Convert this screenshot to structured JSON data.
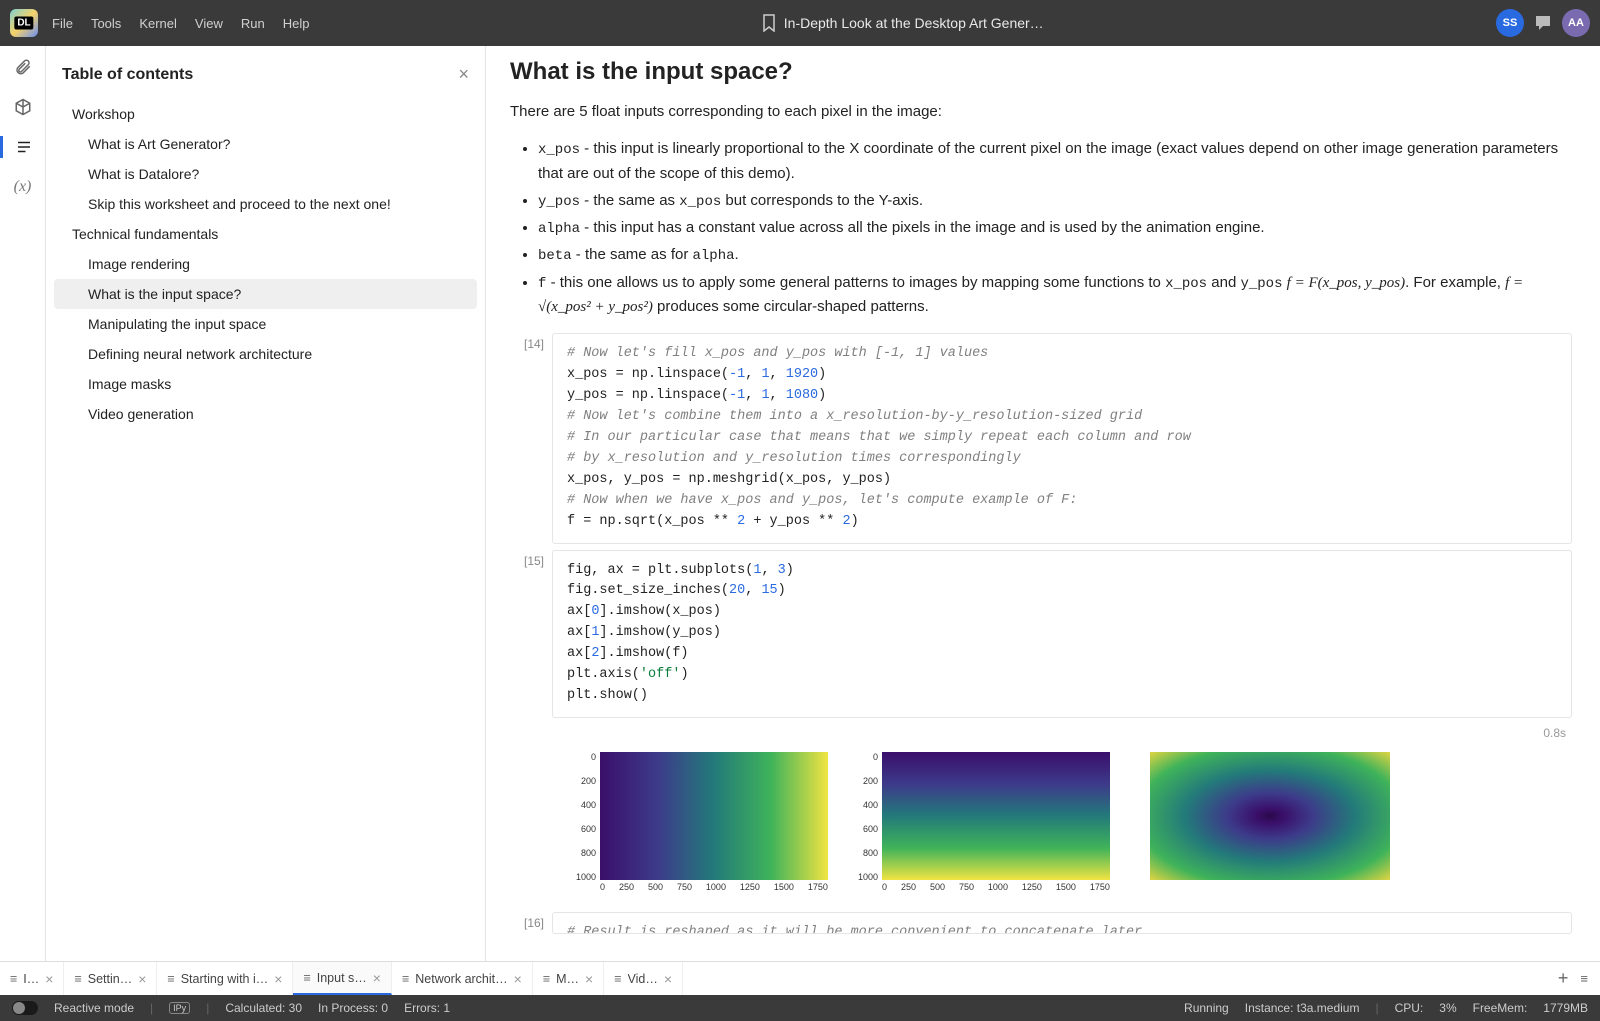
{
  "menu": {
    "file": "File",
    "edit": "Tools",
    "kernel": "Kernel",
    "view": "View",
    "run": "Run",
    "help": "Help"
  },
  "header": {
    "title": "In-Depth Look at the Desktop Art Gener…",
    "user1": "SS",
    "user2": "AA"
  },
  "toc": {
    "title": "Table of contents",
    "items": [
      {
        "label": "Workshop",
        "level": 1
      },
      {
        "label": "What is Art Generator?",
        "level": 2
      },
      {
        "label": "What is Datalore?",
        "level": 2
      },
      {
        "label": "Skip this worksheet and proceed to the next one!",
        "level": 2
      },
      {
        "label": "Technical fundamentals",
        "level": 1
      },
      {
        "label": "Image rendering",
        "level": 2
      },
      {
        "label": "What is the input space?",
        "level": 2,
        "active": true
      },
      {
        "label": "Manipulating the input space",
        "level": 2
      },
      {
        "label": "Defining neural network architecture",
        "level": 2
      },
      {
        "label": "Image masks",
        "level": 2
      },
      {
        "label": "Video generation",
        "level": 2
      }
    ]
  },
  "content": {
    "heading": "What is the input space?",
    "intro": "There are 5 float inputs corresponding to each pixel in the image:",
    "bullets": {
      "b0a": "x_pos",
      "b0b": " - this input is linearly proportional to the X coordinate of the current pixel on the image (exact values depend on other image generation parameters that are out of the scope of this demo).",
      "b1a": "y_pos",
      "b1b": " - the same as ",
      "b1c": "x_pos",
      "b1d": " but corresponds to the Y-axis.",
      "b2a": "alpha",
      "b2b": " - this input has a constant value across all the pixels in the image and is used by the animation engine.",
      "b3a": "beta",
      "b3b": " - the same as for ",
      "b3c": "alpha",
      "b3d": ".",
      "b4a": "f",
      "b4b": " - this one allows us to apply some general patterns to images by mapping some functions to ",
      "b4c": "x_pos",
      "b4d": " and ",
      "b4e": "y_pos",
      "b4f": " ",
      "b4g": "f = F(x_pos, y_pos)",
      "b4h": ". For example, ",
      "b4i": "f = √(x_pos² + y_pos²)",
      "b4j": " produces some circular-shaped patterns."
    }
  },
  "cells": {
    "c14": {
      "prompt": "[14]",
      "l0": "# Now let's fill x_pos and y_pos with [-1, 1] values",
      "l1a": "x_pos = np.linspace(",
      "l1b": "-1",
      "l1c": ", ",
      "l1d": "1",
      "l1e": ", ",
      "l1f": "1920",
      "l1g": ")",
      "l2a": "y_pos = np.linspace(",
      "l2b": "-1",
      "l2c": ", ",
      "l2d": "1",
      "l2e": ", ",
      "l2f": "1080",
      "l2g": ")",
      "l3": "# Now let's combine them into a x_resolution-by-y_resolution-sized grid",
      "l4": "# In our particular case that means that we simply repeat each column and row",
      "l5": "# by x_resolution and y_resolution times correspondingly",
      "l6": "x_pos, y_pos = np.meshgrid(x_pos, y_pos)",
      "l7": "# Now when we have x_pos and y_pos, let's compute example of F:",
      "l8a": "f = np.sqrt(x_pos ** ",
      "l8b": "2",
      "l8c": " + y_pos ** ",
      "l8d": "2",
      "l8e": ")"
    },
    "c15": {
      "prompt": "[15]",
      "time": "0.8s",
      "l0a": "fig, ax = plt.subplots(",
      "l0b": "1",
      "l0c": ", ",
      "l0d": "3",
      "l0e": ")",
      "l1a": "fig.set_size_inches(",
      "l1b": "20",
      "l1c": ", ",
      "l1d": "15",
      "l1e": ")",
      "l2a": "ax[",
      "l2b": "0",
      "l2c": "].imshow(x_pos)",
      "l3a": "ax[",
      "l3b": "1",
      "l3c": "].imshow(y_pos)",
      "l4a": "ax[",
      "l4b": "2",
      "l4c": "].imshow(f)",
      "l5a": "plt.axis(",
      "l5b": "'off'",
      "l5c": ")",
      "l6": "plt.show()"
    },
    "c16": {
      "prompt": "[16]"
    }
  },
  "axes": {
    "y": [
      "0",
      "200",
      "400",
      "600",
      "800",
      "1000"
    ],
    "x": [
      "0",
      "250",
      "500",
      "750",
      "1000",
      "1250",
      "1500",
      "1750"
    ]
  },
  "tabs": [
    {
      "label": "I…"
    },
    {
      "label": "Settin…"
    },
    {
      "label": "Starting with i…"
    },
    {
      "label": "Input s…",
      "active": true
    },
    {
      "label": "Network archit…"
    },
    {
      "label": "M…"
    },
    {
      "label": "Vid…"
    }
  ],
  "status": {
    "reactive": "Reactive mode",
    "ipy": "IPy",
    "calc": "Calculated: 30",
    "inproc": "In Process: 0",
    "errors": "Errors: 1",
    "running": "Running",
    "instance": "Instance: t3a.medium",
    "cpu_l": "CPU:",
    "cpu_v": "3%",
    "mem_l": "FreeMem:",
    "mem_v": "1779MB"
  }
}
